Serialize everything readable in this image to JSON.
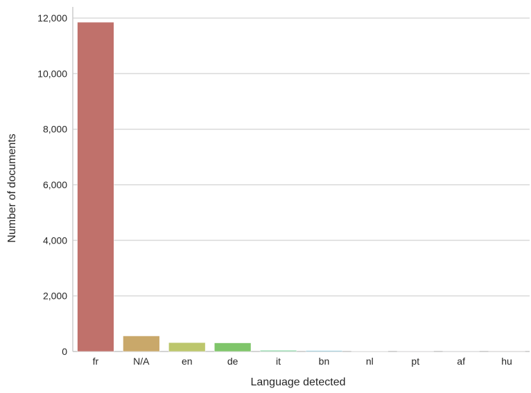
{
  "chart_data": {
    "type": "bar",
    "title": "",
    "xlabel": "Language detected",
    "ylabel": "Number of documents",
    "categories": [
      "fr",
      "N/A",
      "en",
      "de",
      "it",
      "bn",
      "nl",
      "pt",
      "af",
      "hu"
    ],
    "values": [
      11850,
      560,
      320,
      310,
      45,
      35,
      8,
      6,
      4,
      3
    ],
    "colors": [
      "#c0716b",
      "#c9a86a",
      "#bcc66c",
      "#7fc56a",
      "#8ed6a8",
      "#8dc6d8",
      "#9fb2dd",
      "#b3a4dd",
      "#c9a3dc",
      "#dca3c9"
    ],
    "ylim": [
      0,
      12400
    ],
    "yticks": [
      0,
      2000,
      4000,
      6000,
      8000,
      10000,
      12000
    ],
    "ytick_labels": [
      "0",
      "2,000",
      "4,000",
      "6,000",
      "8,000",
      "10,000",
      "12,000"
    ],
    "grid": true,
    "legend": "none"
  }
}
